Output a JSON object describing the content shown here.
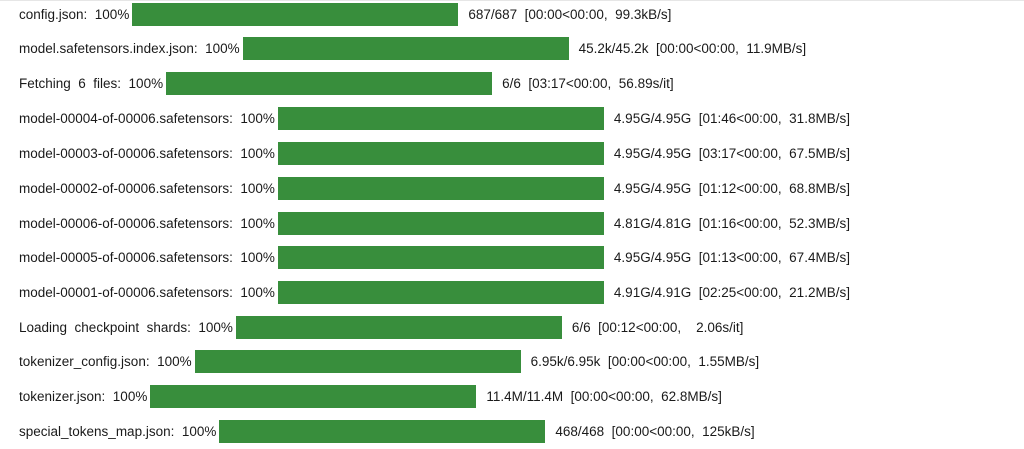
{
  "progress_bars": [
    {
      "label": "config.json:  100%",
      "stats": "687/687  [00:00<00:00,  99.3kB/s]",
      "progress": 1.0
    },
    {
      "label": "model.safetensors.index.json:  100%",
      "stats": "45.2k/45.2k  [00:00<00:00,  11.9MB/s]",
      "progress": 1.0
    },
    {
      "label": "Fetching  6  files:  100%",
      "stats": "6/6  [03:17<00:00,  56.89s/it]",
      "progress": 1.0
    },
    {
      "label": "model-00004-of-00006.safetensors:  100%",
      "stats": "4.95G/4.95G  [01:46<00:00,  31.8MB/s]",
      "progress": 1.0
    },
    {
      "label": "model-00003-of-00006.safetensors:  100%",
      "stats": "4.95G/4.95G  [03:17<00:00,  67.5MB/s]",
      "progress": 1.0
    },
    {
      "label": "model-00002-of-00006.safetensors:  100%",
      "stats": "4.95G/4.95G  [01:12<00:00,  68.8MB/s]",
      "progress": 1.0
    },
    {
      "label": "model-00006-of-00006.safetensors:  100%",
      "stats": "4.81G/4.81G  [01:16<00:00,  52.3MB/s]",
      "progress": 1.0
    },
    {
      "label": "model-00005-of-00006.safetensors:  100%",
      "stats": "4.95G/4.95G  [01:13<00:00,  67.4MB/s]",
      "progress": 1.0
    },
    {
      "label": "model-00001-of-00006.safetensors:  100%",
      "stats": "4.91G/4.91G  [02:25<00:00,  21.2MB/s]",
      "progress": 1.0
    },
    {
      "label": "Loading  checkpoint  shards:  100%",
      "stats": "6/6  [00:12<00:00,    2.06s/it]",
      "progress": 1.0
    },
    {
      "label": "tokenizer_config.json:  100%",
      "stats": "6.95k/6.95k  [00:00<00:00,  1.55MB/s]",
      "progress": 1.0
    },
    {
      "label": "tokenizer.json:  100%",
      "stats": "11.4M/11.4M  [00:00<00:00,  62.8MB/s]",
      "progress": 1.0
    },
    {
      "label": "special_tokens_map.json:  100%",
      "stats": "468/468  [00:00<00:00,  125kB/s]",
      "progress": 1.0
    }
  ],
  "colors": {
    "bar_fill": "#388e3c",
    "text": "#1a1a1a",
    "background": "#ffffff"
  }
}
